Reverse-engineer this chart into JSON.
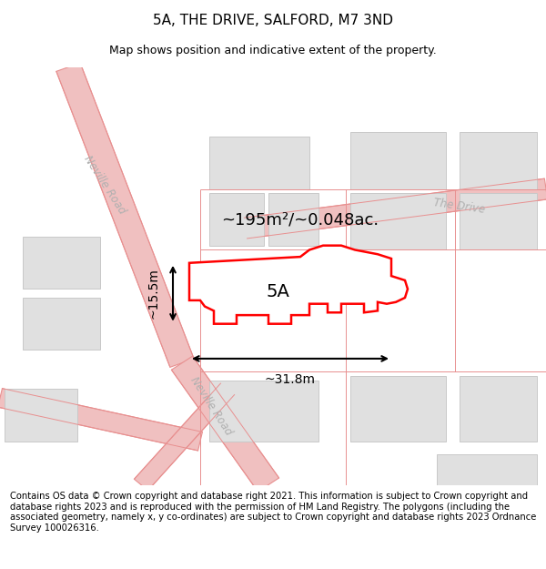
{
  "title": "5A, THE DRIVE, SALFORD, M7 3ND",
  "subtitle": "Map shows position and indicative extent of the property.",
  "footer": "Contains OS data © Crown copyright and database right 2021. This information is subject to Crown copyright and database rights 2023 and is reproduced with the permission of HM Land Registry. The polygons (including the associated geometry, namely x, y co-ordinates) are subject to Crown copyright and database rights 2023 Ordnance Survey 100026316.",
  "area_label": "~195m²/~0.048ac.",
  "property_label": "5A",
  "dim_width": "~31.8m",
  "dim_height": "~15.5m",
  "road_label1": "Neville Road",
  "road_label2": "The Drive",
  "title_fontsize": 11,
  "subtitle_fontsize": 9,
  "footer_fontsize": 7.2,
  "road_color": "#f0c0c0",
  "road_edge_color": "#e89090",
  "building_color": "#e0e0e0",
  "building_edge_color": "#c8c8c8",
  "road_label_color": "#b0b0b0",
  "map_bg": "#ffffff"
}
